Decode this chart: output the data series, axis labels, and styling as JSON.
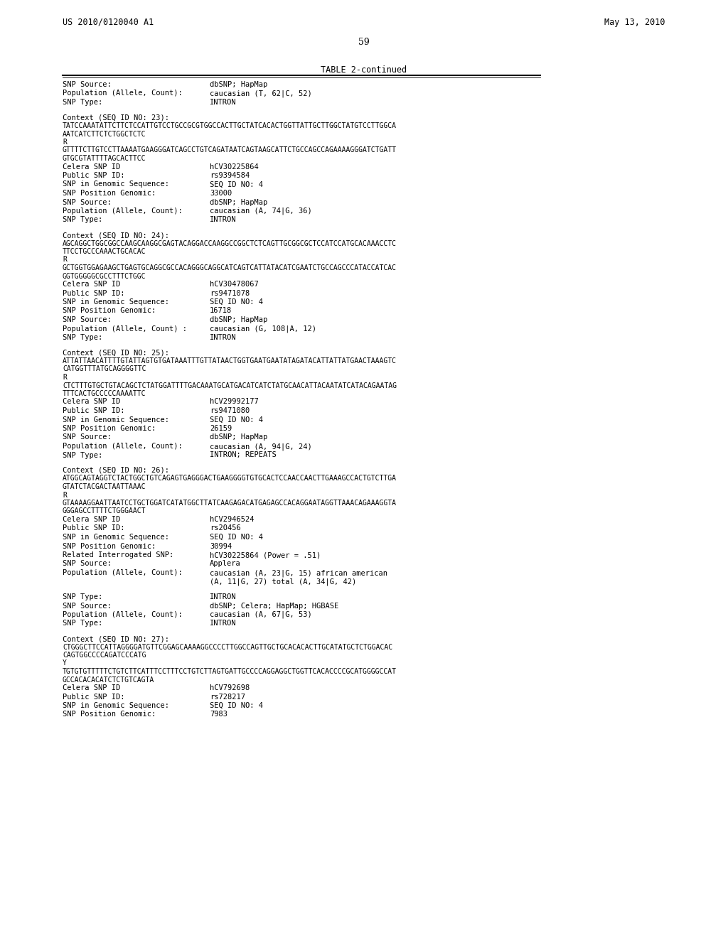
{
  "header_left": "US 2010/0120040 A1",
  "header_right": "May 13, 2010",
  "page_number": "59",
  "table_title": "TABLE 2-continued",
  "background_color": "#ffffff",
  "text_color": "#000000",
  "content": [
    {
      "type": "field",
      "label": "SNP Source:",
      "value": "dbSNP; HapMap"
    },
    {
      "type": "field",
      "label": "Population (Allele, Count):",
      "value": "caucasian (T, 62|C, 52)"
    },
    {
      "type": "field",
      "label": "SNP Type:",
      "value": "INTRON"
    },
    {
      "type": "blank"
    },
    {
      "type": "context",
      "text": "Context (SEQ ID NO: 23):"
    },
    {
      "type": "mono",
      "text": "TATCCAAATATTCTTCTCCATTGTCCTGCCGCGTGGCCACTTGCTATCACACTGGTTATTGCTTGGCTATGTCCTTGGCA"
    },
    {
      "type": "mono",
      "text": "AATCATCTTCTCTGGCTCTC"
    },
    {
      "type": "mono",
      "text": "R"
    },
    {
      "type": "mono",
      "text": "GTTTTCTTGTCCTTAAAATGAAGGGATCAGCCTGTCAGATAATCAGTAAGCATTCTGCCAGCCAGAAAAGGGATCTGATT"
    },
    {
      "type": "mono",
      "text": "GTGCGTATTTTAGCACTTCC"
    },
    {
      "type": "field",
      "label": "Celera SNP ID",
      "value": "hCV30225864"
    },
    {
      "type": "field",
      "label": "Public SNP ID:",
      "value": "rs9394584"
    },
    {
      "type": "field",
      "label": "SNP in Genomic Sequence:",
      "value": "SEQ ID NO: 4"
    },
    {
      "type": "field",
      "label": "SNP Position Genomic:",
      "value": "33000"
    },
    {
      "type": "field",
      "label": "SNP Source:",
      "value": "dbSNP; HapMap"
    },
    {
      "type": "field",
      "label": "Population (Allele, Count):",
      "value": "caucasian (A, 74|G, 36)"
    },
    {
      "type": "field",
      "label": "SNP Type:",
      "value": "INTRON"
    },
    {
      "type": "blank"
    },
    {
      "type": "context",
      "text": "Context (SEQ ID NO: 24):"
    },
    {
      "type": "mono",
      "text": "AGCAGGCTGGCGGCCAAGCAAGGCGAGTACAGGACCAAGGCCGGCTCTCAGTTGCGGCGCTCCATCCATGCACAAACCTC"
    },
    {
      "type": "mono",
      "text": "TTCCTGCCCAAACTGCACAC"
    },
    {
      "type": "mono",
      "text": "R"
    },
    {
      "type": "mono",
      "text": "GCTGGTGGAGAAGCTGAGTGCAGGCGCCACAGGGCAGGCATCAGTCATTATACATCGAATCTGCCAGCCCATACCATCAC"
    },
    {
      "type": "mono",
      "text": "GGTGGGGGCGCCTTTCTGGC"
    },
    {
      "type": "field",
      "label": "Celera SNP ID",
      "value": "hCV30478067"
    },
    {
      "type": "field",
      "label": "Public SNP ID:",
      "value": "rs9471078"
    },
    {
      "type": "field",
      "label": "SNP in Genomic Sequence:",
      "value": "SEQ ID NO: 4"
    },
    {
      "type": "field",
      "label": "SNP Position Genomic:",
      "value": "16718"
    },
    {
      "type": "field",
      "label": "SNP Source:",
      "value": "dbSNP; HapMap"
    },
    {
      "type": "field",
      "label": "Population (Allele, Count) :",
      "value": "caucasian (G, 108|A, 12)"
    },
    {
      "type": "field",
      "label": "SNP Type:",
      "value": "INTRON"
    },
    {
      "type": "blank"
    },
    {
      "type": "context",
      "text": "Context (SEQ ID NO: 25):"
    },
    {
      "type": "mono",
      "text": "ATTATTAACATTTTGTATTAGTGTGATAAATTTGTTATAACTGGTGAATGAATATAGATACATTATTATGAACTAAAGTC"
    },
    {
      "type": "mono",
      "text": "CATGGTTTATGCAGGGGTTC"
    },
    {
      "type": "mono",
      "text": "R"
    },
    {
      "type": "mono",
      "text": "CTCTTTGTGCTGTACAGCTCTATGGATTTTGACAAATGCATGACATCATCTATGCAACATTACAATATCATACAGAATAG"
    },
    {
      "type": "mono",
      "text": "TTTCACTGCCCCCAAAATTC"
    },
    {
      "type": "field",
      "label": "Celera SNP ID",
      "value": "hCV29992177"
    },
    {
      "type": "field",
      "label": "Public SNP ID:",
      "value": "rs9471080"
    },
    {
      "type": "field",
      "label": "SNP in Genomic Sequence:",
      "value": "SEQ ID NO: 4"
    },
    {
      "type": "field",
      "label": "SNP Position Genomic:",
      "value": "26159"
    },
    {
      "type": "field",
      "label": "SNP Source:",
      "value": "dbSNP; HapMap"
    },
    {
      "type": "field",
      "label": "Population (Allele, Count):",
      "value": "caucasian (A, 94|G, 24)"
    },
    {
      "type": "field",
      "label": "SNP Type:",
      "value": "INTRON; REPEATS"
    },
    {
      "type": "blank"
    },
    {
      "type": "context",
      "text": "Context (SEQ ID NO: 26):"
    },
    {
      "type": "mono",
      "text": "ATGGCAGTAGGTCTACTGGCTGTCAGAGTGAGGGACTGAAGGGGTGTGCACTCCAACCAACTTGAAAGCCACTGTCTTGA"
    },
    {
      "type": "mono",
      "text": "GTATCTACGACTAATTAAAC"
    },
    {
      "type": "mono",
      "text": "R"
    },
    {
      "type": "mono",
      "text": "GTAAAAGGAATTAATCCTGCTGGATCATATGGCTTATCAAGAGACATGAGAGCCACAGGAATAGGTTAAACAGAAAGGTA"
    },
    {
      "type": "mono",
      "text": "GGGAGCCTTTTCTGGGAACT"
    },
    {
      "type": "field",
      "label": "Celera SNP ID",
      "value": "hCV2946524"
    },
    {
      "type": "field",
      "label": "Public SNP ID:",
      "value": "rs20456"
    },
    {
      "type": "field",
      "label": "SNP in Genomic Sequence:",
      "value": "SEQ ID NO: 4"
    },
    {
      "type": "field",
      "label": "SNP Position Genomic:",
      "value": "30994"
    },
    {
      "type": "field",
      "label": "Related Interrogated SNP:",
      "value": "hCV30225864 (Power = .51)"
    },
    {
      "type": "field",
      "label": "SNP Source:",
      "value": "Applera"
    },
    {
      "type": "field",
      "label": "Population (Allele, Count):",
      "value": "caucasian (A, 23|G, 15) african american"
    },
    {
      "type": "field_cont",
      "value": "(A, 11|G, 27) total (A, 34|G, 42)"
    },
    {
      "type": "blank"
    },
    {
      "type": "field",
      "label": "SNP Type:",
      "value": "INTRON"
    },
    {
      "type": "field",
      "label": "SNP Source:",
      "value": "dbSNP; Celera; HapMap; HGBASE"
    },
    {
      "type": "field",
      "label": "Population (Allele, Count):",
      "value": "caucasian (A, 67|G, 53)"
    },
    {
      "type": "field",
      "label": "SNP Type:",
      "value": "INTRON"
    },
    {
      "type": "blank"
    },
    {
      "type": "context",
      "text": "Context (SEQ ID NO: 27):"
    },
    {
      "type": "mono",
      "text": "CTGGGCTTCCATTAGGGGATGTTCGGAGCAAAAGGCCCCTTGGCCAGTTGCTGCACACACTTGCATATGCTCTGGACAC"
    },
    {
      "type": "mono",
      "text": "CAGTGGCCCCAGATCCCATG"
    },
    {
      "type": "mono",
      "text": "Y"
    },
    {
      "type": "mono",
      "text": "TGTGTGTTTTTCTGTCTTCATTTCCTTTCCTGTCTTAGTGATTGCCCCAGGAGGCTGGTTCACACCCCGCATGGGGCCAT"
    },
    {
      "type": "mono",
      "text": "GCCACACACATCTCTGTCAGTA"
    },
    {
      "type": "field",
      "label": "Celera SNP ID",
      "value": "hCV792698"
    },
    {
      "type": "field",
      "label": "Public SNP ID:",
      "value": "rs728217"
    },
    {
      "type": "field",
      "label": "SNP in Genomic Sequence:",
      "value": "SEQ ID NO: 4"
    },
    {
      "type": "field",
      "label": "SNP Position Genomic:",
      "value": "7983"
    }
  ]
}
